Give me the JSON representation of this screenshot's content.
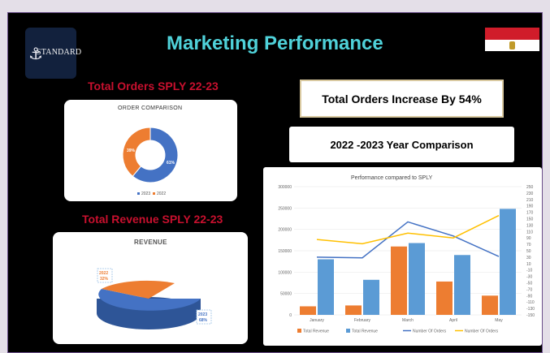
{
  "title": "Marketing Performance",
  "logo_text": "STANDARD",
  "orders_label": "Total Orders SPLY   22-23",
  "revenue_label": "Total Revenue SPLY   22-23",
  "orders_increase": "Total Orders Increase By 54%",
  "year_comparison": "2022 -2023 Year Comparison",
  "order_chart": {
    "title": "ORDER COMPARISON",
    "legend": [
      "2023",
      "2022"
    ],
    "labels": [
      "61%",
      "39%"
    ]
  },
  "revenue_chart": {
    "title": "REVENUE",
    "labels": [
      "2022",
      "32%",
      "2023",
      "68%"
    ]
  },
  "perf_chart": {
    "title": "Performance compared to SPLY",
    "legend": [
      "Total Revenue",
      "Total Revenue",
      "Number Of Orders",
      "Number Of Orders"
    ]
  },
  "colors": {
    "blue": "#4472c4",
    "orange": "#ed7d31",
    "bar_blue": "#5b9bd5",
    "yellow": "#ffc000",
    "title_cyan": "#4fd1d9",
    "label_red": "#c8102e"
  },
  "chart_data": [
    {
      "type": "pie",
      "title": "ORDER COMPARISON",
      "categories": [
        "2023",
        "2022"
      ],
      "values": [
        61,
        39
      ]
    },
    {
      "type": "pie",
      "title": "REVENUE",
      "categories": [
        "2023",
        "2022"
      ],
      "values": [
        68,
        32
      ]
    },
    {
      "type": "bar",
      "title": "Performance compared to SPLY",
      "categories": [
        "January",
        "February",
        "March",
        "April",
        "May"
      ],
      "series": [
        {
          "name": "Total Revenue",
          "values": [
            20000,
            22000,
            160000,
            78000,
            45000
          ]
        },
        {
          "name": "Total Revenue",
          "values": [
            130000,
            82000,
            168000,
            140000,
            248000
          ]
        },
        {
          "name": "Number Of Orders",
          "values": [
            30,
            28,
            140,
            96,
            32
          ]
        },
        {
          "name": "Number Of Orders",
          "values": [
            85,
            72,
            105,
            90,
            160
          ]
        }
      ],
      "y_ticks": [
        "0",
        "50000",
        "100000",
        "150000",
        "200000",
        "250000",
        "300000"
      ],
      "y2_ticks": [
        "-150",
        "-130",
        "-110",
        "-90",
        "-70",
        "-50",
        "-30",
        "-10",
        "10",
        "30",
        "50",
        "70",
        "90",
        "110",
        "130",
        "150",
        "170",
        "190",
        "210",
        "230",
        "250"
      ],
      "ylim": [
        0,
        300000
      ],
      "y2lim": [
        -150,
        250
      ]
    }
  ]
}
